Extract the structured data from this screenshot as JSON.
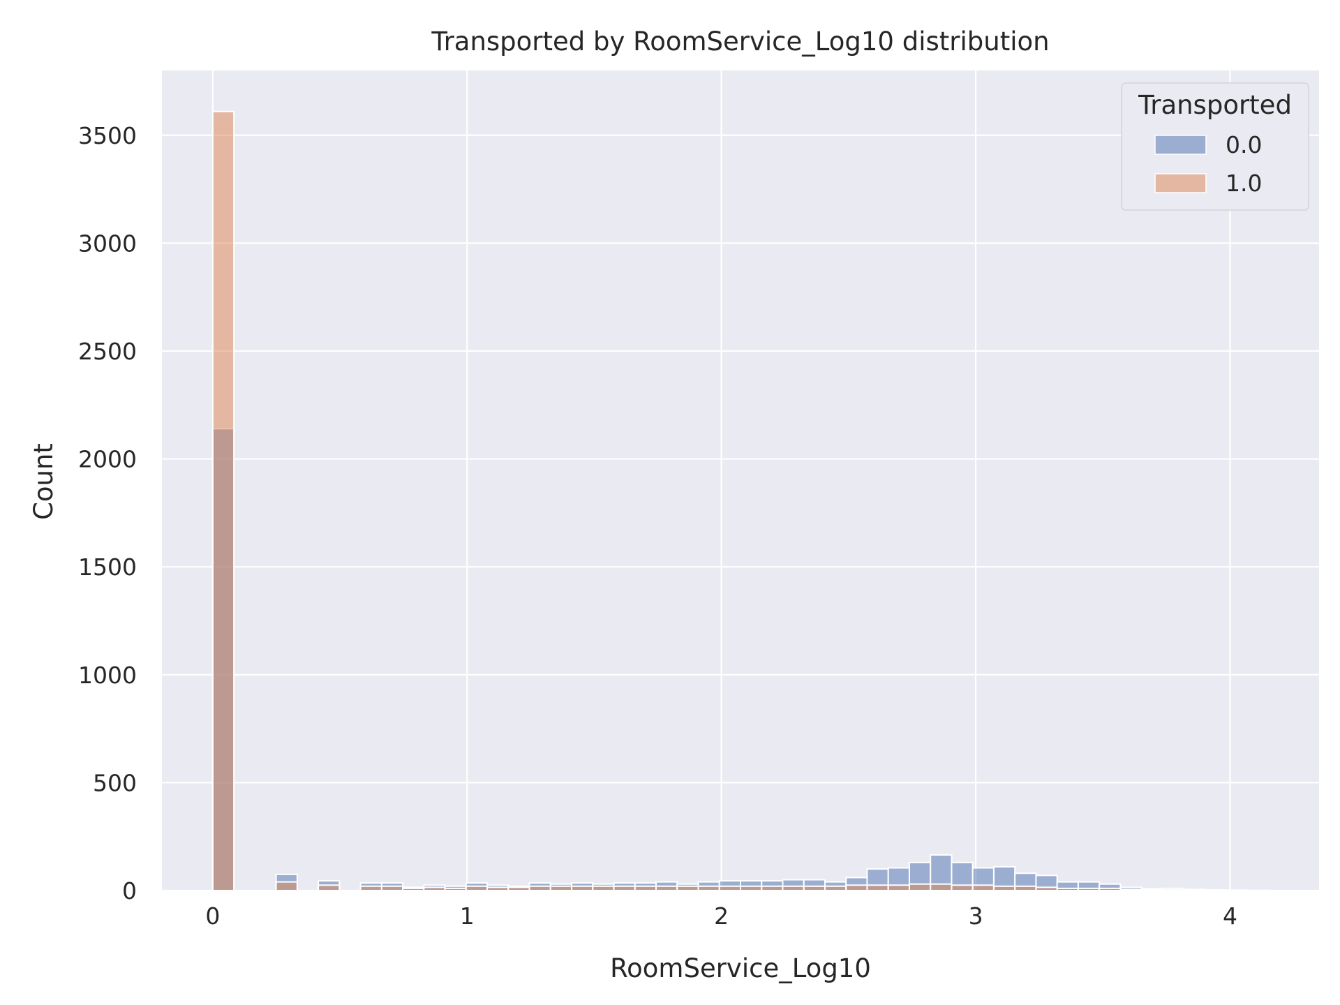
{
  "chart_data": {
    "type": "bar",
    "title": "Transported by RoomService_Log10 distribution",
    "xlabel": "RoomService_Log10",
    "ylabel": "Count",
    "xlim": [
      -0.2,
      4.35
    ],
    "ylim": [
      0,
      3800
    ],
    "x_ticks": [
      0,
      1,
      2,
      3,
      4
    ],
    "x_tick_labels": [
      "0",
      "1",
      "2",
      "3",
      "4"
    ],
    "y_ticks": [
      0,
      500,
      1000,
      1500,
      2000,
      2500,
      3000,
      3500
    ],
    "y_tick_labels": [
      "0",
      "500",
      "1000",
      "1500",
      "2000",
      "2500",
      "3000",
      "3500"
    ],
    "grid": true,
    "stacked": false,
    "bin_width": 0.083,
    "bin_starts": [
      0,
      0.083,
      0.166,
      0.249,
      0.332,
      0.415,
      0.498,
      0.581,
      0.664,
      0.747,
      0.83,
      0.913,
      0.996,
      1.079,
      1.162,
      1.245,
      1.328,
      1.411,
      1.494,
      1.577,
      1.66,
      1.743,
      1.826,
      1.909,
      1.992,
      2.075,
      2.158,
      2.241,
      2.324,
      2.407,
      2.49,
      2.573,
      2.656,
      2.739,
      2.822,
      2.905,
      2.988,
      3.071,
      3.154,
      3.237,
      3.32,
      3.403,
      3.486,
      3.569,
      3.652,
      3.735,
      3.818,
      3.901,
      3.984,
      4.067
    ],
    "legend": {
      "title": "Transported",
      "position": "top-right",
      "entries": [
        "0.0",
        "1.0"
      ]
    },
    "series": [
      {
        "name": "0.0",
        "color": "#4c72b0",
        "values": [
          2140,
          0,
          0,
          75,
          0,
          45,
          0,
          35,
          35,
          15,
          25,
          20,
          35,
          25,
          20,
          35,
          30,
          35,
          30,
          35,
          35,
          40,
          30,
          40,
          45,
          45,
          45,
          50,
          50,
          40,
          60,
          100,
          105,
          130,
          165,
          130,
          105,
          110,
          80,
          70,
          40,
          40,
          30,
          15,
          8,
          10,
          5,
          3,
          2,
          1
        ]
      },
      {
        "name": "1.0",
        "color": "#dd8452",
        "values": [
          3610,
          0,
          0,
          40,
          0,
          25,
          0,
          20,
          20,
          10,
          15,
          10,
          20,
          15,
          15,
          20,
          20,
          20,
          20,
          20,
          20,
          20,
          20,
          20,
          20,
          20,
          20,
          20,
          20,
          20,
          25,
          25,
          25,
          30,
          30,
          25,
          25,
          20,
          20,
          15,
          10,
          10,
          10,
          5,
          3,
          3,
          2,
          1,
          1,
          0
        ]
      }
    ],
    "colors": {
      "plot_background": "#eaeaf2",
      "grid": "#ffffff",
      "overlap": "#9b90a4"
    }
  }
}
